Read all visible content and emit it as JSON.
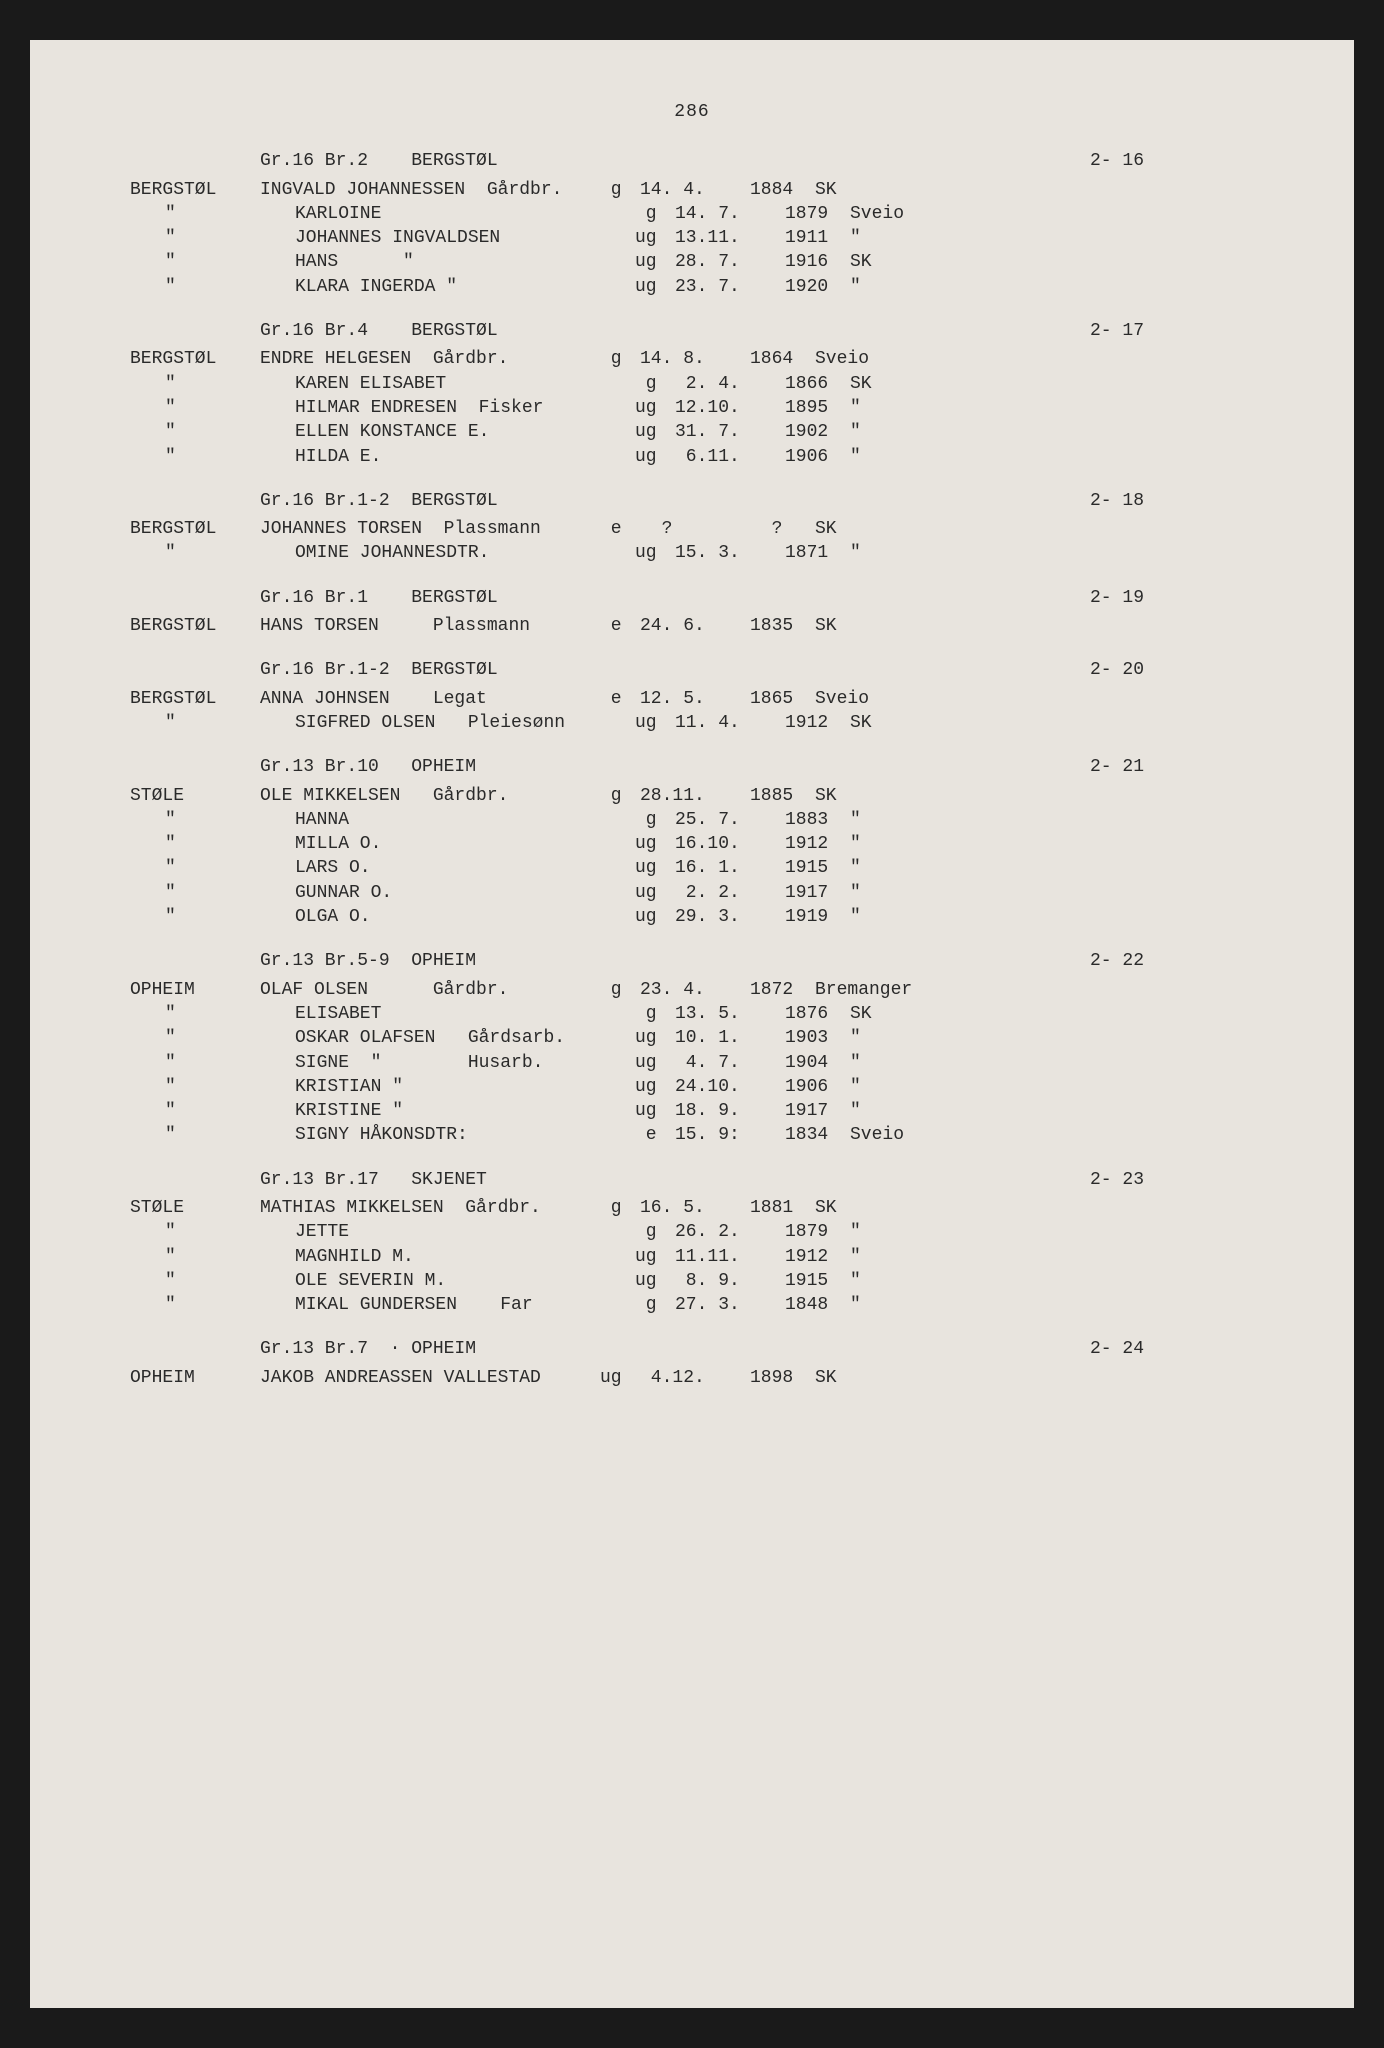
{
  "page_number": "286",
  "sections": [
    {
      "header": "Gr.16 Br.2    BERGSTØL",
      "ref": "2- 16",
      "rows": [
        {
          "surname": "BERGSTØL",
          "name": "INGVALD JOHANNESSEN  Gårdbr.",
          "status": "g",
          "date": "14. 4.",
          "year": "1884",
          "place": "SK"
        },
        {
          "surname": "\"",
          "name": "KARLOINE",
          "status": "g",
          "date": "14. 7.",
          "year": "1879",
          "place": "Sveio"
        },
        {
          "surname": "\"",
          "name": "JOHANNES INGVALDSEN",
          "status": "ug",
          "date": "13.11.",
          "year": "1911",
          "place": "\""
        },
        {
          "surname": "\"",
          "name": "HANS      \"",
          "status": "ug",
          "date": "28. 7.",
          "year": "1916",
          "place": "SK"
        },
        {
          "surname": "\"",
          "name": "KLARA INGERDA \"",
          "status": "ug",
          "date": "23. 7.",
          "year": "1920",
          "place": "\""
        }
      ]
    },
    {
      "header": "Gr.16 Br.4    BERGSTØL",
      "ref": "2- 17",
      "rows": [
        {
          "surname": "BERGSTØL",
          "name": "ENDRE HELGESEN  Gårdbr.",
          "status": "g",
          "date": "14. 8.",
          "year": "1864",
          "place": "Sveio"
        },
        {
          "surname": "\"",
          "name": "KAREN ELISABET",
          "status": "g",
          "date": " 2. 4.",
          "year": "1866",
          "place": "SK"
        },
        {
          "surname": "\"",
          "name": "HILMAR ENDRESEN  Fisker",
          "status": "ug",
          "date": "12.10.",
          "year": "1895",
          "place": "\""
        },
        {
          "surname": "\"",
          "name": "ELLEN KONSTANCE E.",
          "status": "ug",
          "date": "31. 7.",
          "year": "1902",
          "place": "\""
        },
        {
          "surname": "\"",
          "name": "HILDA E.",
          "status": "ug",
          "date": " 6.11.",
          "year": "1906",
          "place": "\""
        }
      ]
    },
    {
      "header": "Gr.16 Br.1-2  BERGSTØL",
      "ref": "2- 18",
      "rows": [
        {
          "surname": "BERGSTØL",
          "name": "JOHANNES TORSEN  Plassmann",
          "status": "e",
          "date": "  ?",
          "year": "  ?",
          "place": "SK"
        },
        {
          "surname": "\"",
          "name": "OMINE JOHANNESDTR.",
          "status": "ug",
          "date": "15. 3.",
          "year": "1871",
          "place": "\""
        }
      ]
    },
    {
      "header": "Gr.16 Br.1    BERGSTØL",
      "ref": "2- 19",
      "rows": [
        {
          "surname": "BERGSTØL",
          "name": "HANS TORSEN     Plassmann",
          "status": "e",
          "date": "24. 6.",
          "year": "1835",
          "place": "SK"
        }
      ]
    },
    {
      "header": "Gr.16 Br.1-2  BERGSTØL",
      "ref": "2- 20",
      "rows": [
        {
          "surname": "BERGSTØL",
          "name": "ANNA JOHNSEN    Legat",
          "status": "e",
          "date": "12. 5.",
          "year": "1865",
          "place": "Sveio"
        },
        {
          "surname": "\"",
          "name": "SIGFRED OLSEN   Pleiesønn",
          "status": "ug",
          "date": "11. 4.",
          "year": "1912",
          "place": "SK"
        }
      ]
    },
    {
      "header": "Gr.13 Br.10   OPHEIM",
      "ref": "2- 21",
      "rows": [
        {
          "surname": "STØLE",
          "name": "OLE MIKKELSEN   Gårdbr.",
          "status": "g",
          "date": "28.11.",
          "year": "1885",
          "place": "SK"
        },
        {
          "surname": "\"",
          "name": "HANNA",
          "status": "g",
          "date": "25. 7.",
          "year": "1883",
          "place": "\""
        },
        {
          "surname": "\"",
          "name": "MILLA O.",
          "status": "ug",
          "date": "16.10.",
          "year": "1912",
          "place": "\""
        },
        {
          "surname": "\"",
          "name": "LARS O.",
          "status": "ug",
          "date": "16. 1.",
          "year": "1915",
          "place": "\""
        },
        {
          "surname": "\"",
          "name": "GUNNAR O.",
          "status": "ug",
          "date": " 2. 2.",
          "year": "1917",
          "place": "\""
        },
        {
          "surname": "\"",
          "name": "OLGA O.",
          "status": "ug",
          "date": "29. 3.",
          "year": "1919",
          "place": "\""
        }
      ]
    },
    {
      "header": "Gr.13 Br.5-9  OPHEIM",
      "ref": "2- 22",
      "rows": [
        {
          "surname": "OPHEIM",
          "name": "OLAF OLSEN      Gårdbr.",
          "status": "g",
          "date": "23. 4.",
          "year": "1872",
          "place": "Bremanger"
        },
        {
          "surname": "\"",
          "name": "ELISABET",
          "status": "g",
          "date": "13. 5.",
          "year": "1876",
          "place": "SK"
        },
        {
          "surname": "\"",
          "name": "OSKAR OLAFSEN   Gårdsarb.",
          "status": "ug",
          "date": "10. 1.",
          "year": "1903",
          "place": "\""
        },
        {
          "surname": "\"",
          "name": "SIGNE  \"        Husarb.",
          "status": "ug",
          "date": " 4. 7.",
          "year": "1904",
          "place": "\""
        },
        {
          "surname": "\"",
          "name": "KRISTIAN \"",
          "status": "ug",
          "date": "24.10.",
          "year": "1906",
          "place": "\""
        },
        {
          "surname": "\"",
          "name": "KRISTINE \"",
          "status": "ug",
          "date": "18. 9.",
          "year": "1917",
          "place": "\""
        },
        {
          "surname": "\"",
          "name": "SIGNY HÅKONSDTR:",
          "status": "e",
          "date": "15. 9:",
          "year": "1834",
          "place": "Sveio"
        }
      ]
    },
    {
      "header": "Gr.13 Br.17   SKJENET",
      "ref": "2- 23",
      "rows": [
        {
          "surname": "STØLE",
          "name": "MATHIAS MIKKELSEN  Gårdbr.",
          "status": "g",
          "date": "16. 5.",
          "year": "1881",
          "place": "SK"
        },
        {
          "surname": "\"",
          "name": "JETTE",
          "status": "g",
          "date": "26. 2.",
          "year": "1879",
          "place": "\""
        },
        {
          "surname": "\"",
          "name": "MAGNHILD M.",
          "status": "ug",
          "date": "11.11.",
          "year": "1912",
          "place": "\""
        },
        {
          "surname": "\"",
          "name": "OLE SEVERIN M.",
          "status": "ug",
          "date": " 8. 9.",
          "year": "1915",
          "place": "\""
        },
        {
          "surname": "\"",
          "name": "MIKAL GUNDERSEN    Far",
          "status": "g",
          "date": "27. 3.",
          "year": "1848",
          "place": "\""
        }
      ]
    },
    {
      "header": "Gr.13 Br.7  · OPHEIM",
      "ref": "2- 24",
      "rows": [
        {
          "surname": "OPHEIM",
          "name": "JAKOB ANDREASSEN VALLESTAD",
          "status": "ug",
          "date": " 4.12.",
          "year": "1898",
          "place": "SK"
        }
      ]
    }
  ]
}
